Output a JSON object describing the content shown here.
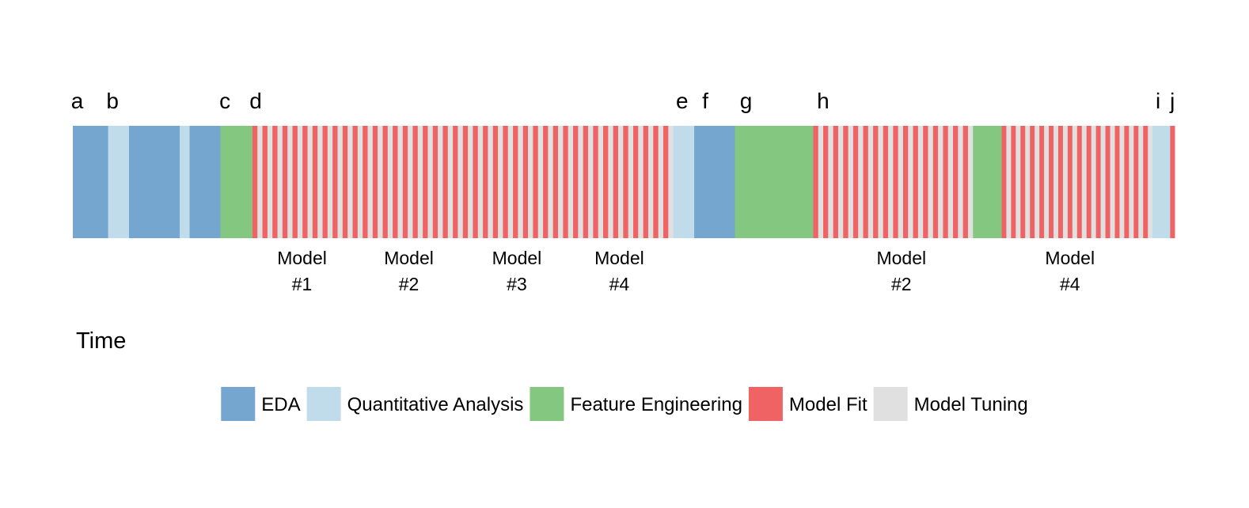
{
  "chart_data": {
    "type": "timeline",
    "x_axis_label": "Time",
    "x_range": [
      0,
      100
    ],
    "segment_labels": [
      {
        "label": "a",
        "position": 0.4
      },
      {
        "label": "b",
        "position": 3.6
      },
      {
        "label": "c",
        "position": 13.8
      },
      {
        "label": "d",
        "position": 16.6
      },
      {
        "label": "e",
        "position": 55.3
      },
      {
        "label": "f",
        "position": 57.4
      },
      {
        "label": "g",
        "position": 61.1
      },
      {
        "label": "h",
        "position": 68.1
      },
      {
        "label": "i",
        "position": 98.5
      },
      {
        "label": "j",
        "position": 99.8
      }
    ],
    "model_labels": [
      {
        "line1": "Model",
        "line2": "#1",
        "position": 20.8
      },
      {
        "line1": "Model",
        "line2": "#2",
        "position": 30.5
      },
      {
        "line1": "Model",
        "line2": "#3",
        "position": 40.3
      },
      {
        "line1": "Model",
        "line2": "#4",
        "position": 49.6
      },
      {
        "line1": "Model",
        "line2": "#2",
        "position": 75.2
      },
      {
        "line1": "Model",
        "line2": "#4",
        "position": 90.5
      }
    ],
    "blocks": [
      {
        "activity": "EDA",
        "start": 0.0,
        "end": 3.2
      },
      {
        "activity": "Quantitative Analysis",
        "start": 3.2,
        "end": 5.1
      },
      {
        "activity": "EDA",
        "start": 5.1,
        "end": 9.7
      },
      {
        "activity": "Quantitative Analysis",
        "start": 9.7,
        "end": 10.6
      },
      {
        "activity": "EDA",
        "start": 10.6,
        "end": 13.4
      },
      {
        "activity": "Feature Engineering",
        "start": 13.4,
        "end": 16.3
      },
      {
        "activity": "Model Tuning",
        "start": 16.3,
        "end": 54.5,
        "stripes": "Model Fit",
        "stripe_count": 42
      },
      {
        "activity": "Quantitative Analysis",
        "start": 54.5,
        "end": 56.4
      },
      {
        "activity": "EDA",
        "start": 56.4,
        "end": 60.1
      },
      {
        "activity": "Feature Engineering",
        "start": 60.1,
        "end": 67.2
      },
      {
        "activity": "Model Tuning",
        "start": 67.2,
        "end": 81.7,
        "stripes": "Model Fit",
        "stripe_count": 16
      },
      {
        "activity": "Feature Engineering",
        "start": 81.7,
        "end": 84.3
      },
      {
        "activity": "Model Tuning",
        "start": 84.3,
        "end": 98.0,
        "stripes": "Model Fit",
        "stripe_count": 16
      },
      {
        "activity": "Quantitative Analysis",
        "start": 98.0,
        "end": 99.6
      },
      {
        "activity": "Model Fit",
        "start": 99.6,
        "end": 100.0
      }
    ],
    "legend": {
      "placement": "bottom",
      "items": [
        {
          "label": "EDA",
          "color": "#74a6cf"
        },
        {
          "label": "Quantitative Analysis",
          "color": "#c0dcea"
        },
        {
          "label": "Feature Engineering",
          "color": "#84c781"
        },
        {
          "label": "Model Fit",
          "color": "#ef6364"
        },
        {
          "label": "Model Tuning",
          "color": "#e0e0e0"
        }
      ]
    }
  }
}
